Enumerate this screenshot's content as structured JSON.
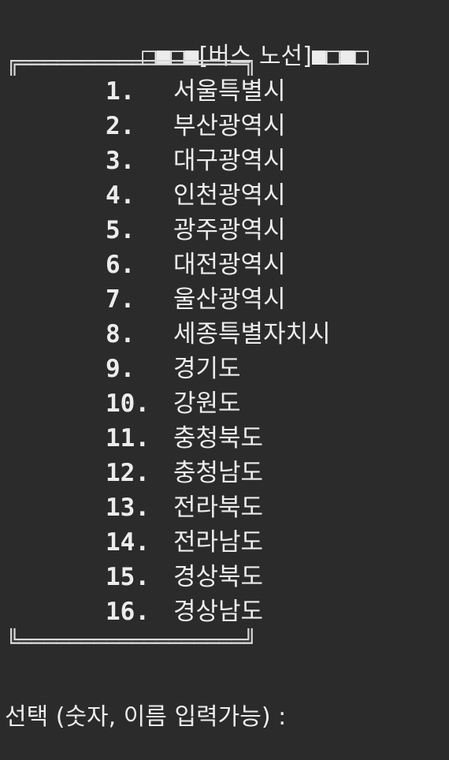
{
  "window": {
    "title_left_deco": "□■□■",
    "title_text": "[버스 노선]",
    "title_right_deco": "■□■□"
  },
  "frame": {
    "top_border": "╔══════════════════╗",
    "bottom_border": "╚══════════════════╝"
  },
  "menu": {
    "items": [
      {
        "num": "1.",
        "label": "서울특별시"
      },
      {
        "num": "2.",
        "label": "부산광역시"
      },
      {
        "num": "3.",
        "label": "대구광역시"
      },
      {
        "num": "4.",
        "label": "인천광역시"
      },
      {
        "num": "5.",
        "label": "광주광역시"
      },
      {
        "num": "6.",
        "label": "대전광역시"
      },
      {
        "num": "7.",
        "label": "울산광역시"
      },
      {
        "num": "8.",
        "label": "세종특별자치시"
      },
      {
        "num": "9.",
        "label": "경기도"
      },
      {
        "num": "10.",
        "label": "강원도"
      },
      {
        "num": "11.",
        "label": "충청북도"
      },
      {
        "num": "12.",
        "label": "충청남도"
      },
      {
        "num": "13.",
        "label": "전라북도"
      },
      {
        "num": "14.",
        "label": "전라남도"
      },
      {
        "num": "15.",
        "label": "경상북도"
      },
      {
        "num": "16.",
        "label": "경상남도"
      }
    ]
  },
  "prompt": {
    "text": "선택 (숫자, 이름 입력가능) :"
  }
}
